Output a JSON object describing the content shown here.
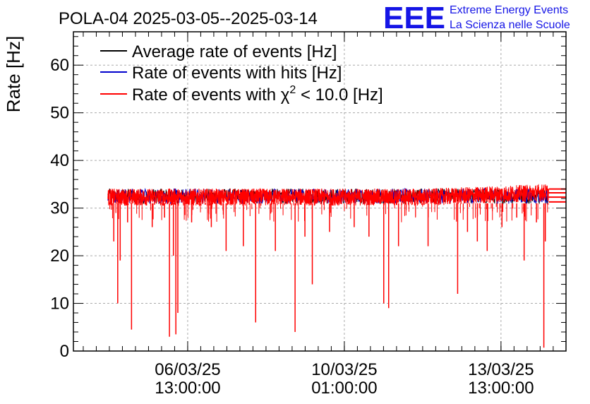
{
  "chart_data": {
    "type": "line",
    "title": "POLA-04 2025-03-05--2025-03-14",
    "ylabel": "Rate [Hz]",
    "xlabel": "",
    "ylim": [
      0,
      67
    ],
    "yticks": [
      0,
      10,
      20,
      30,
      40,
      50,
      60
    ],
    "xticks": [
      {
        "date": "06/03/25",
        "time": "13:00:00",
        "pos": 0.232
      },
      {
        "date": "10/03/25",
        "time": "01:00:00",
        "pos": 0.55
      },
      {
        "date": "13/03/25",
        "time": "13:00:00",
        "pos": 0.868
      }
    ],
    "x_range": [
      0.0,
      1.0
    ],
    "data_extent": [
      0.07,
      0.965
    ],
    "grid": true,
    "legend_position": "top-left",
    "series": [
      {
        "name": "Average rate of events [Hz]",
        "color": "#000000",
        "mean": 32.5
      },
      {
        "name": "Rate of events with hits [Hz]",
        "color": "#0000cc",
        "mean": 32.5
      },
      {
        "name": "Rate of events with",
        "name_suffix": "< 10.0 [Hz]",
        "chi_symbol": "χ",
        "chi_exp": "2",
        "color": "#ff0000",
        "mean": 32.3
      }
    ],
    "dips": [
      {
        "x": 0.082,
        "y": 23
      },
      {
        "x": 0.09,
        "y": 10
      },
      {
        "x": 0.095,
        "y": 19
      },
      {
        "x": 0.11,
        "y": 27
      },
      {
        "x": 0.118,
        "y": 4.5
      },
      {
        "x": 0.16,
        "y": 26
      },
      {
        "x": 0.185,
        "y": 28
      },
      {
        "x": 0.195,
        "y": 3
      },
      {
        "x": 0.203,
        "y": 20
      },
      {
        "x": 0.208,
        "y": 3.5
      },
      {
        "x": 0.212,
        "y": 8
      },
      {
        "x": 0.24,
        "y": 27
      },
      {
        "x": 0.28,
        "y": 26
      },
      {
        "x": 0.31,
        "y": 21
      },
      {
        "x": 0.345,
        "y": 22
      },
      {
        "x": 0.37,
        "y": 6
      },
      {
        "x": 0.41,
        "y": 21
      },
      {
        "x": 0.45,
        "y": 4
      },
      {
        "x": 0.47,
        "y": 24
      },
      {
        "x": 0.485,
        "y": 14
      },
      {
        "x": 0.52,
        "y": 25
      },
      {
        "x": 0.57,
        "y": 26
      },
      {
        "x": 0.6,
        "y": 24
      },
      {
        "x": 0.63,
        "y": 10
      },
      {
        "x": 0.64,
        "y": 9
      },
      {
        "x": 0.66,
        "y": 22
      },
      {
        "x": 0.72,
        "y": 22
      },
      {
        "x": 0.78,
        "y": 12
      },
      {
        "x": 0.8,
        "y": 25
      },
      {
        "x": 0.82,
        "y": 23
      },
      {
        "x": 0.84,
        "y": 21
      },
      {
        "x": 0.87,
        "y": 26
      },
      {
        "x": 0.9,
        "y": 28
      },
      {
        "x": 0.915,
        "y": 19
      },
      {
        "x": 0.94,
        "y": 27
      },
      {
        "x": 0.955,
        "y": 0.7
      },
      {
        "x": 0.958,
        "y": 23
      }
    ],
    "tail_lines": [
      34.0,
      33.2,
      32.3,
      31.3
    ]
  },
  "logo": {
    "text": "EEE",
    "line1": "Extreme Energy Events",
    "line2": "La Scienza nelle Scuole"
  }
}
